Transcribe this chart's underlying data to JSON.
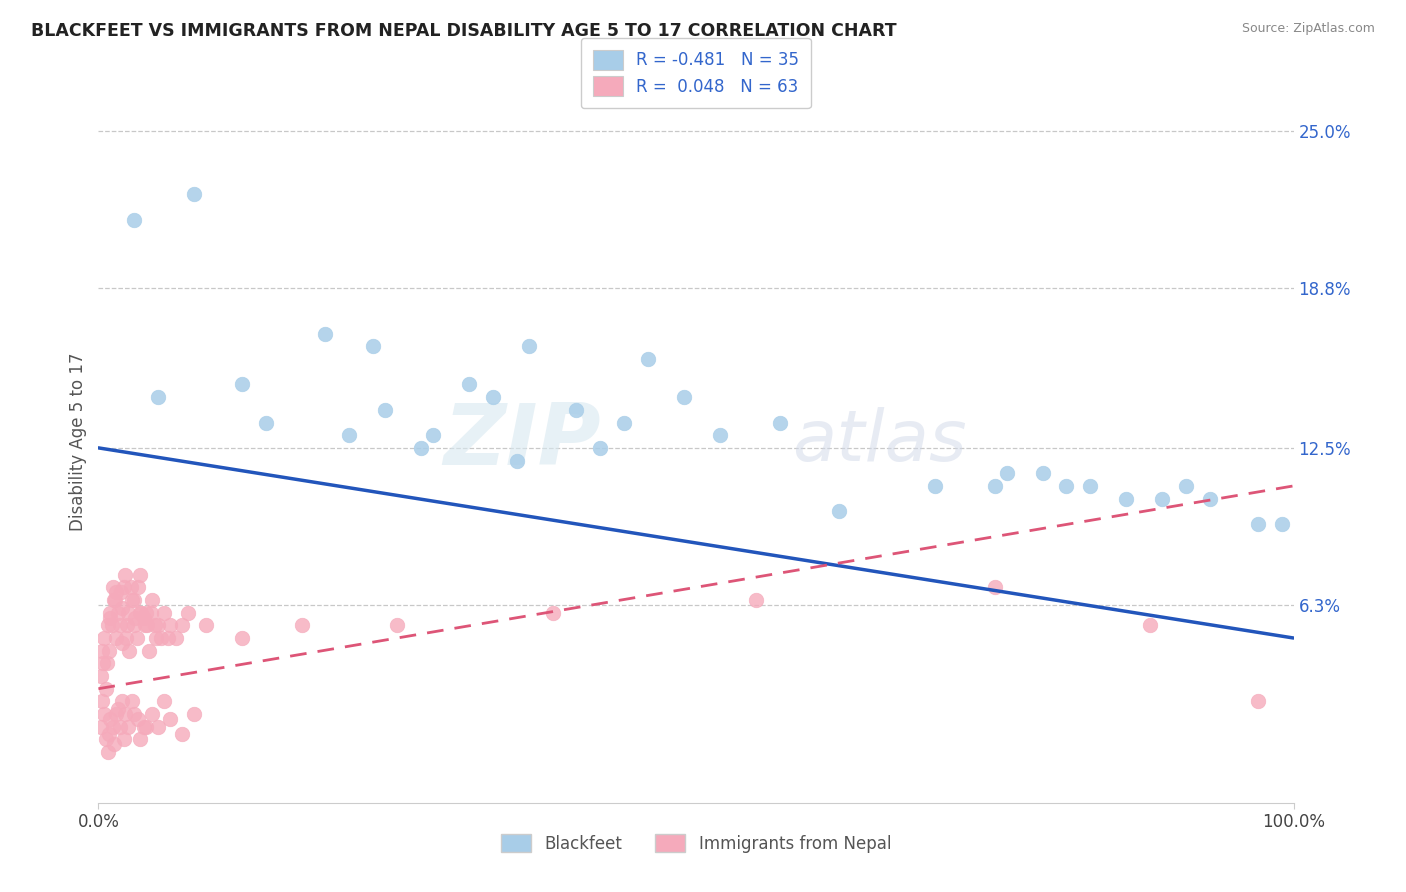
{
  "title": "BLACKFEET VS IMMIGRANTS FROM NEPAL DISABILITY AGE 5 TO 17 CORRELATION CHART",
  "source": "Source: ZipAtlas.com",
  "ylabel": "Disability Age 5 to 17",
  "ytick_labels": [
    "6.3%",
    "12.5%",
    "18.8%",
    "25.0%"
  ],
  "ytick_values": [
    6.3,
    12.5,
    18.8,
    25.0
  ],
  "xlim": [
    0,
    100
  ],
  "ylim": [
    -1.5,
    27
  ],
  "watermark_zip": "ZIP",
  "watermark_atlas": "atlas",
  "color_blue": "#A8CDE8",
  "color_pink": "#F5AABB",
  "color_blue_line": "#2255BB",
  "color_pink_line": "#DD5577",
  "bf_line_x0": 0,
  "bf_line_y0": 12.5,
  "bf_line_x1": 100,
  "bf_line_y1": 5.0,
  "np_line_x0": 0,
  "np_line_y0": 3.0,
  "np_line_x1": 100,
  "np_line_y1": 11.0,
  "blackfeet_x": [
    3,
    8,
    12,
    19,
    23,
    24,
    28,
    31,
    33,
    36,
    40,
    44,
    46,
    49,
    52,
    57,
    70,
    76,
    79,
    81,
    83,
    86,
    89,
    91,
    93,
    5,
    14,
    21,
    27,
    35,
    42,
    62,
    75,
    97,
    99
  ],
  "blackfeet_y": [
    21.5,
    22.5,
    15.0,
    17.0,
    16.5,
    14.0,
    13.0,
    15.0,
    14.5,
    16.5,
    14.0,
    13.5,
    16.0,
    14.5,
    13.0,
    13.5,
    11.0,
    11.5,
    11.5,
    11.0,
    11.0,
    10.5,
    10.5,
    11.0,
    10.5,
    14.5,
    13.5,
    13.0,
    12.5,
    12.0,
    12.5,
    10.0,
    11.0,
    9.5,
    9.5
  ],
  "nepal_x": [
    0.3,
    0.5,
    0.7,
    0.8,
    1.0,
    1.0,
    1.2,
    1.3,
    1.5,
    1.5,
    1.8,
    2.0,
    2.0,
    2.2,
    2.4,
    2.5,
    2.7,
    3.0,
    3.0,
    3.2,
    3.5,
    3.5,
    3.8,
    4.0,
    4.2,
    4.5,
    4.8,
    5.0,
    5.5,
    6.0,
    6.5,
    7.0,
    0.2,
    0.4,
    0.6,
    0.9,
    1.1,
    1.4,
    1.6,
    1.9,
    2.1,
    2.3,
    2.6,
    2.8,
    3.1,
    3.3,
    3.6,
    3.9,
    4.1,
    4.4,
    4.7,
    5.2,
    5.8,
    7.5,
    9.0,
    12.0,
    17.0,
    25.0,
    38.0,
    55.0,
    75.0,
    88.0,
    97.0
  ],
  "nepal_y": [
    4.5,
    5.0,
    4.0,
    5.5,
    6.0,
    5.8,
    7.0,
    6.5,
    5.0,
    6.8,
    5.5,
    4.8,
    6.2,
    7.5,
    5.5,
    6.0,
    7.0,
    5.5,
    6.5,
    5.0,
    6.0,
    7.5,
    5.8,
    6.0,
    4.5,
    6.5,
    5.0,
    5.5,
    6.0,
    5.5,
    5.0,
    5.5,
    3.5,
    4.0,
    3.0,
    4.5,
    5.5,
    6.5,
    6.0,
    6.8,
    7.0,
    5.0,
    4.5,
    6.5,
    5.8,
    7.0,
    6.0,
    5.5,
    5.5,
    6.0,
    5.5,
    5.0,
    5.0,
    6.0,
    5.5,
    5.0,
    5.5,
    5.5,
    6.0,
    6.5,
    7.0,
    5.5,
    2.5
  ],
  "nepal_low_x": [
    0.2,
    0.3,
    0.5,
    0.6,
    0.8,
    1.0,
    1.2,
    1.5,
    1.8,
    2.0,
    2.5,
    3.0,
    3.5,
    4.0,
    2.2,
    2.8,
    3.3,
    1.3,
    0.9,
    1.6,
    2.1,
    3.8,
    4.5,
    5.0,
    5.5,
    6.0,
    7.0,
    8.0
  ],
  "nepal_low_y": [
    1.5,
    2.5,
    2.0,
    1.0,
    0.5,
    1.8,
    1.5,
    2.0,
    1.5,
    2.5,
    1.5,
    2.0,
    1.0,
    1.5,
    2.0,
    2.5,
    1.8,
    0.8,
    1.2,
    2.2,
    1.0,
    1.5,
    2.0,
    1.5,
    2.5,
    1.8,
    1.2,
    2.0
  ]
}
